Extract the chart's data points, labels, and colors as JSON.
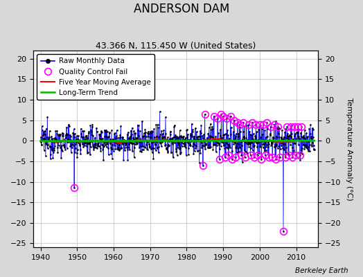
{
  "title": "ANDERSON DAM",
  "subtitle": "43.366 N, 115.450 W (United States)",
  "ylabel": "Temperature Anomaly (°C)",
  "watermark": "Berkeley Earth",
  "xlim": [
    1938,
    2016
  ],
  "ylim": [
    -26,
    22
  ],
  "yticks": [
    -25,
    -20,
    -15,
    -10,
    -5,
    0,
    5,
    10,
    15,
    20
  ],
  "xticks": [
    1940,
    1950,
    1960,
    1970,
    1980,
    1990,
    2000,
    2010
  ],
  "start_year": 1940.0,
  "end_year": 2015.0,
  "raw_color": "#0000ff",
  "qc_color": "#ff00ff",
  "moving_avg_color": "#ff0000",
  "trend_color": "#00bb00",
  "background_color": "#d8d8d8",
  "plot_bg_color": "#ffffff",
  "seed": 12345
}
